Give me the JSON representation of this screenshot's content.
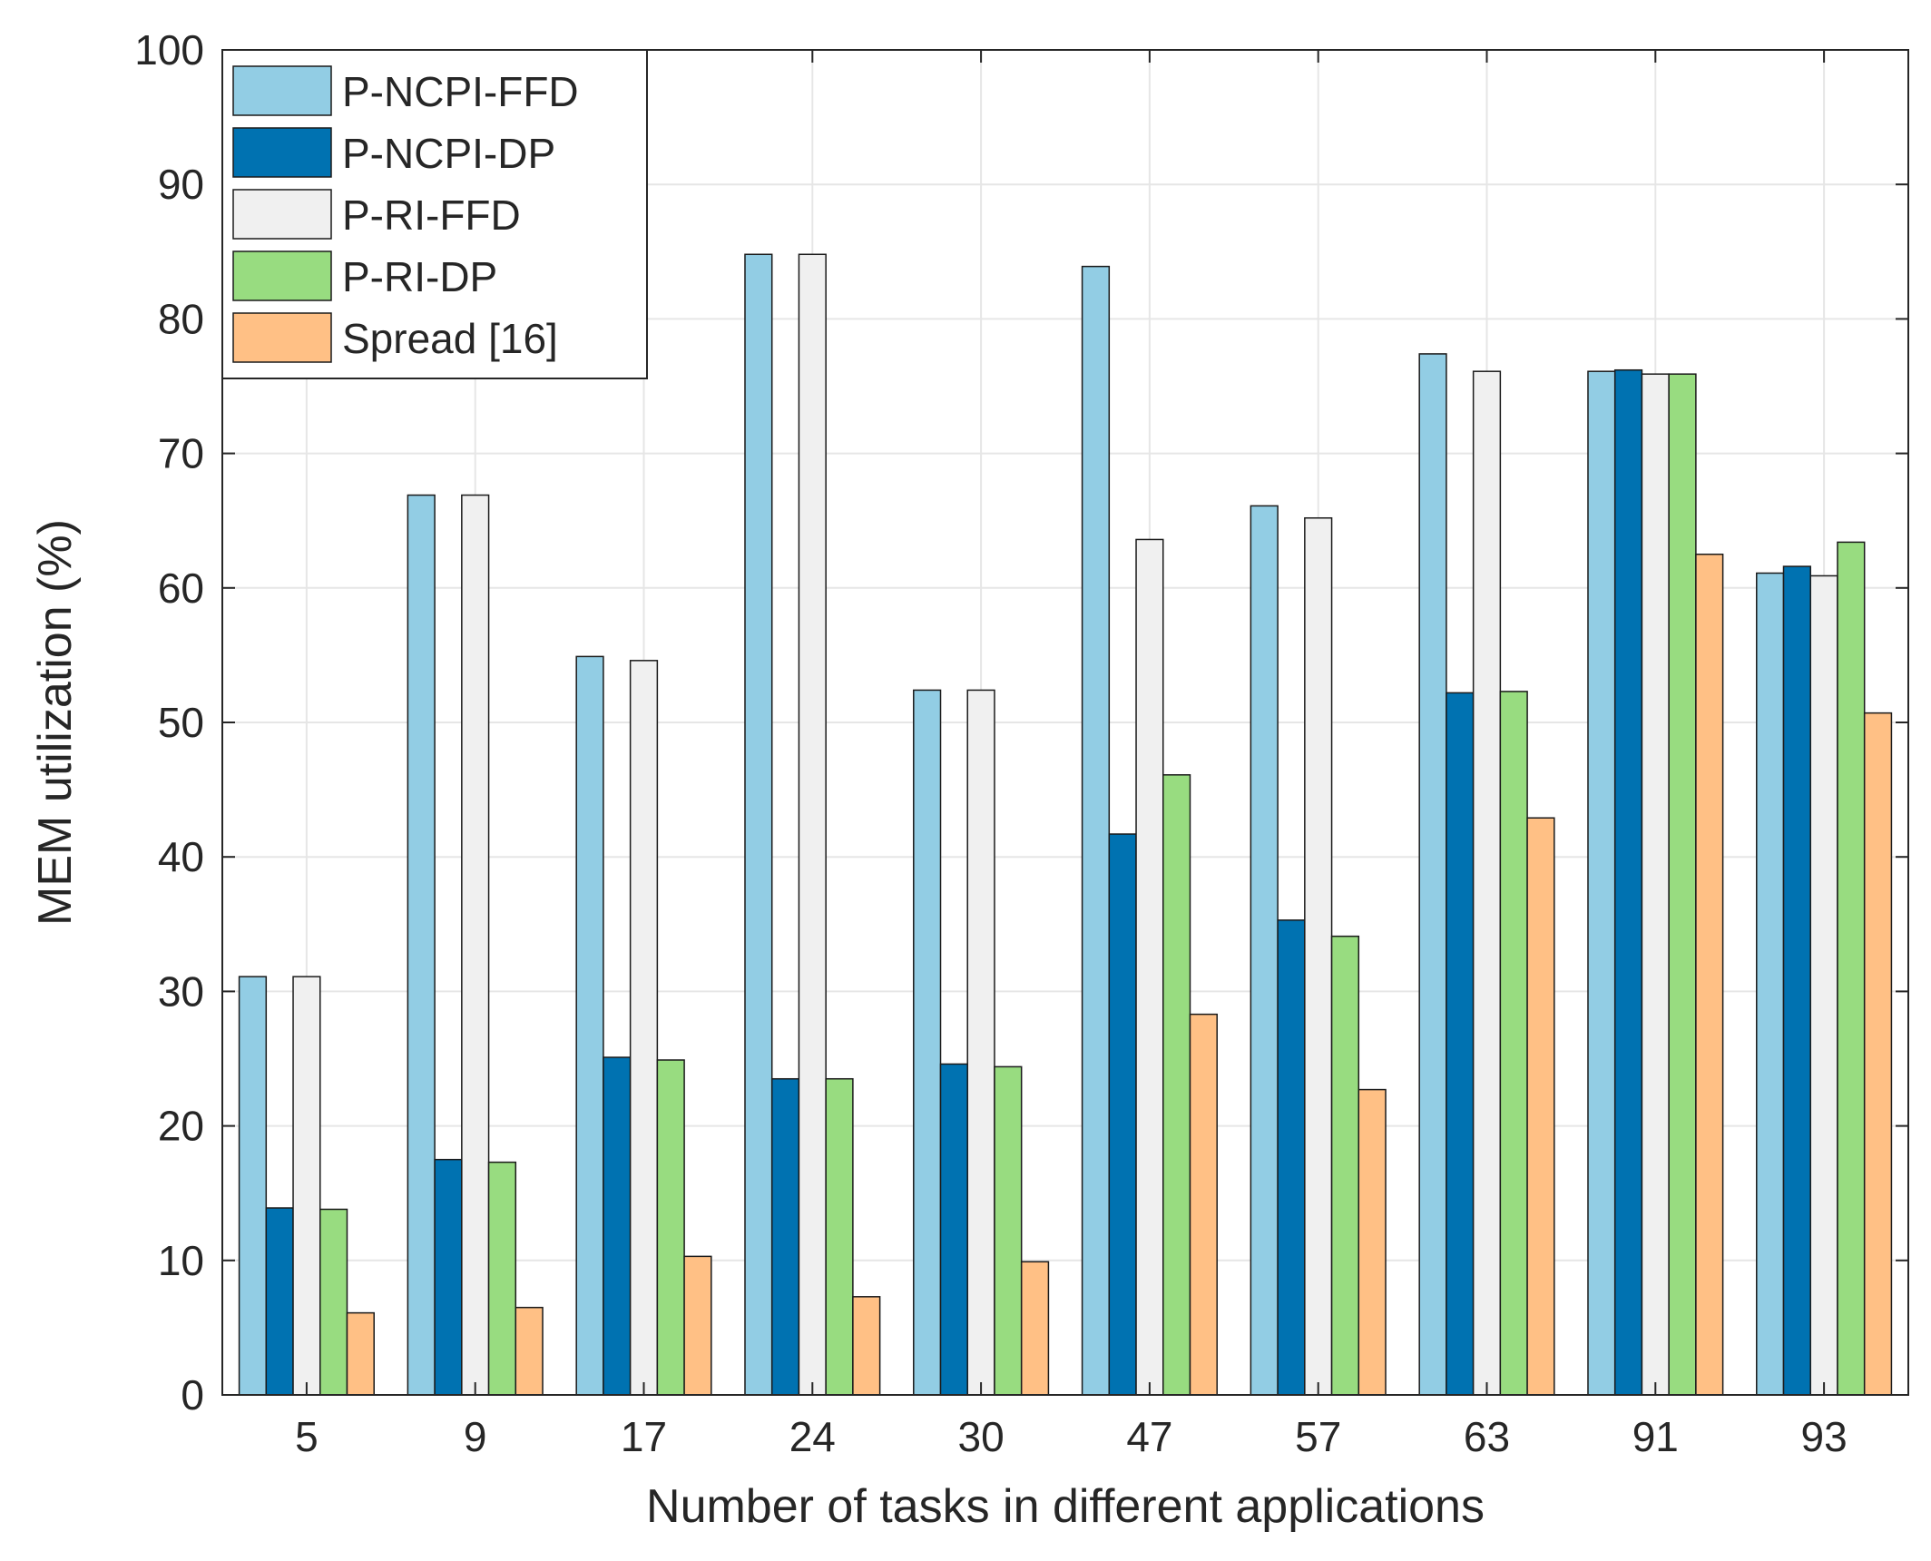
{
  "chart_data": {
    "type": "bar",
    "title": "",
    "xlabel": "Number of tasks in different applications",
    "ylabel": "MEM utilization (%)",
    "ylim": [
      0,
      100
    ],
    "yticks": [
      "0",
      "10",
      "20",
      "30",
      "40",
      "50",
      "60",
      "70",
      "80",
      "90",
      "100"
    ],
    "categories": [
      "5",
      "9",
      "17",
      "24",
      "30",
      "47",
      "57",
      "63",
      "91",
      "93"
    ],
    "grid": true,
    "legend_position": "top-left",
    "series": [
      {
        "name": "P-NCPI-FFD",
        "color": "#92cde4",
        "values": [
          31.1,
          66.9,
          54.9,
          84.8,
          52.4,
          83.9,
          66.1,
          77.4,
          76.1,
          61.1
        ]
      },
      {
        "name": "P-NCPI-DP",
        "color": "#0072b1",
        "values": [
          13.9,
          17.5,
          25.1,
          23.5,
          24.6,
          41.7,
          35.3,
          52.2,
          76.2,
          61.6
        ]
      },
      {
        "name": "P-RI-FFD",
        "color": "#f0f0f0",
        "values": [
          31.1,
          66.9,
          54.6,
          84.8,
          52.4,
          63.6,
          65.2,
          76.1,
          75.9,
          60.9
        ]
      },
      {
        "name": "P-RI-DP",
        "color": "#98dc80",
        "values": [
          13.8,
          17.3,
          24.9,
          23.5,
          24.4,
          46.1,
          34.1,
          52.3,
          75.9,
          63.4
        ]
      },
      {
        "name": "Spread [16]",
        "color": "#ffc085",
        "values": [
          6.1,
          6.5,
          10.3,
          7.3,
          9.9,
          28.3,
          22.7,
          42.9,
          62.5,
          50.7
        ]
      }
    ]
  }
}
